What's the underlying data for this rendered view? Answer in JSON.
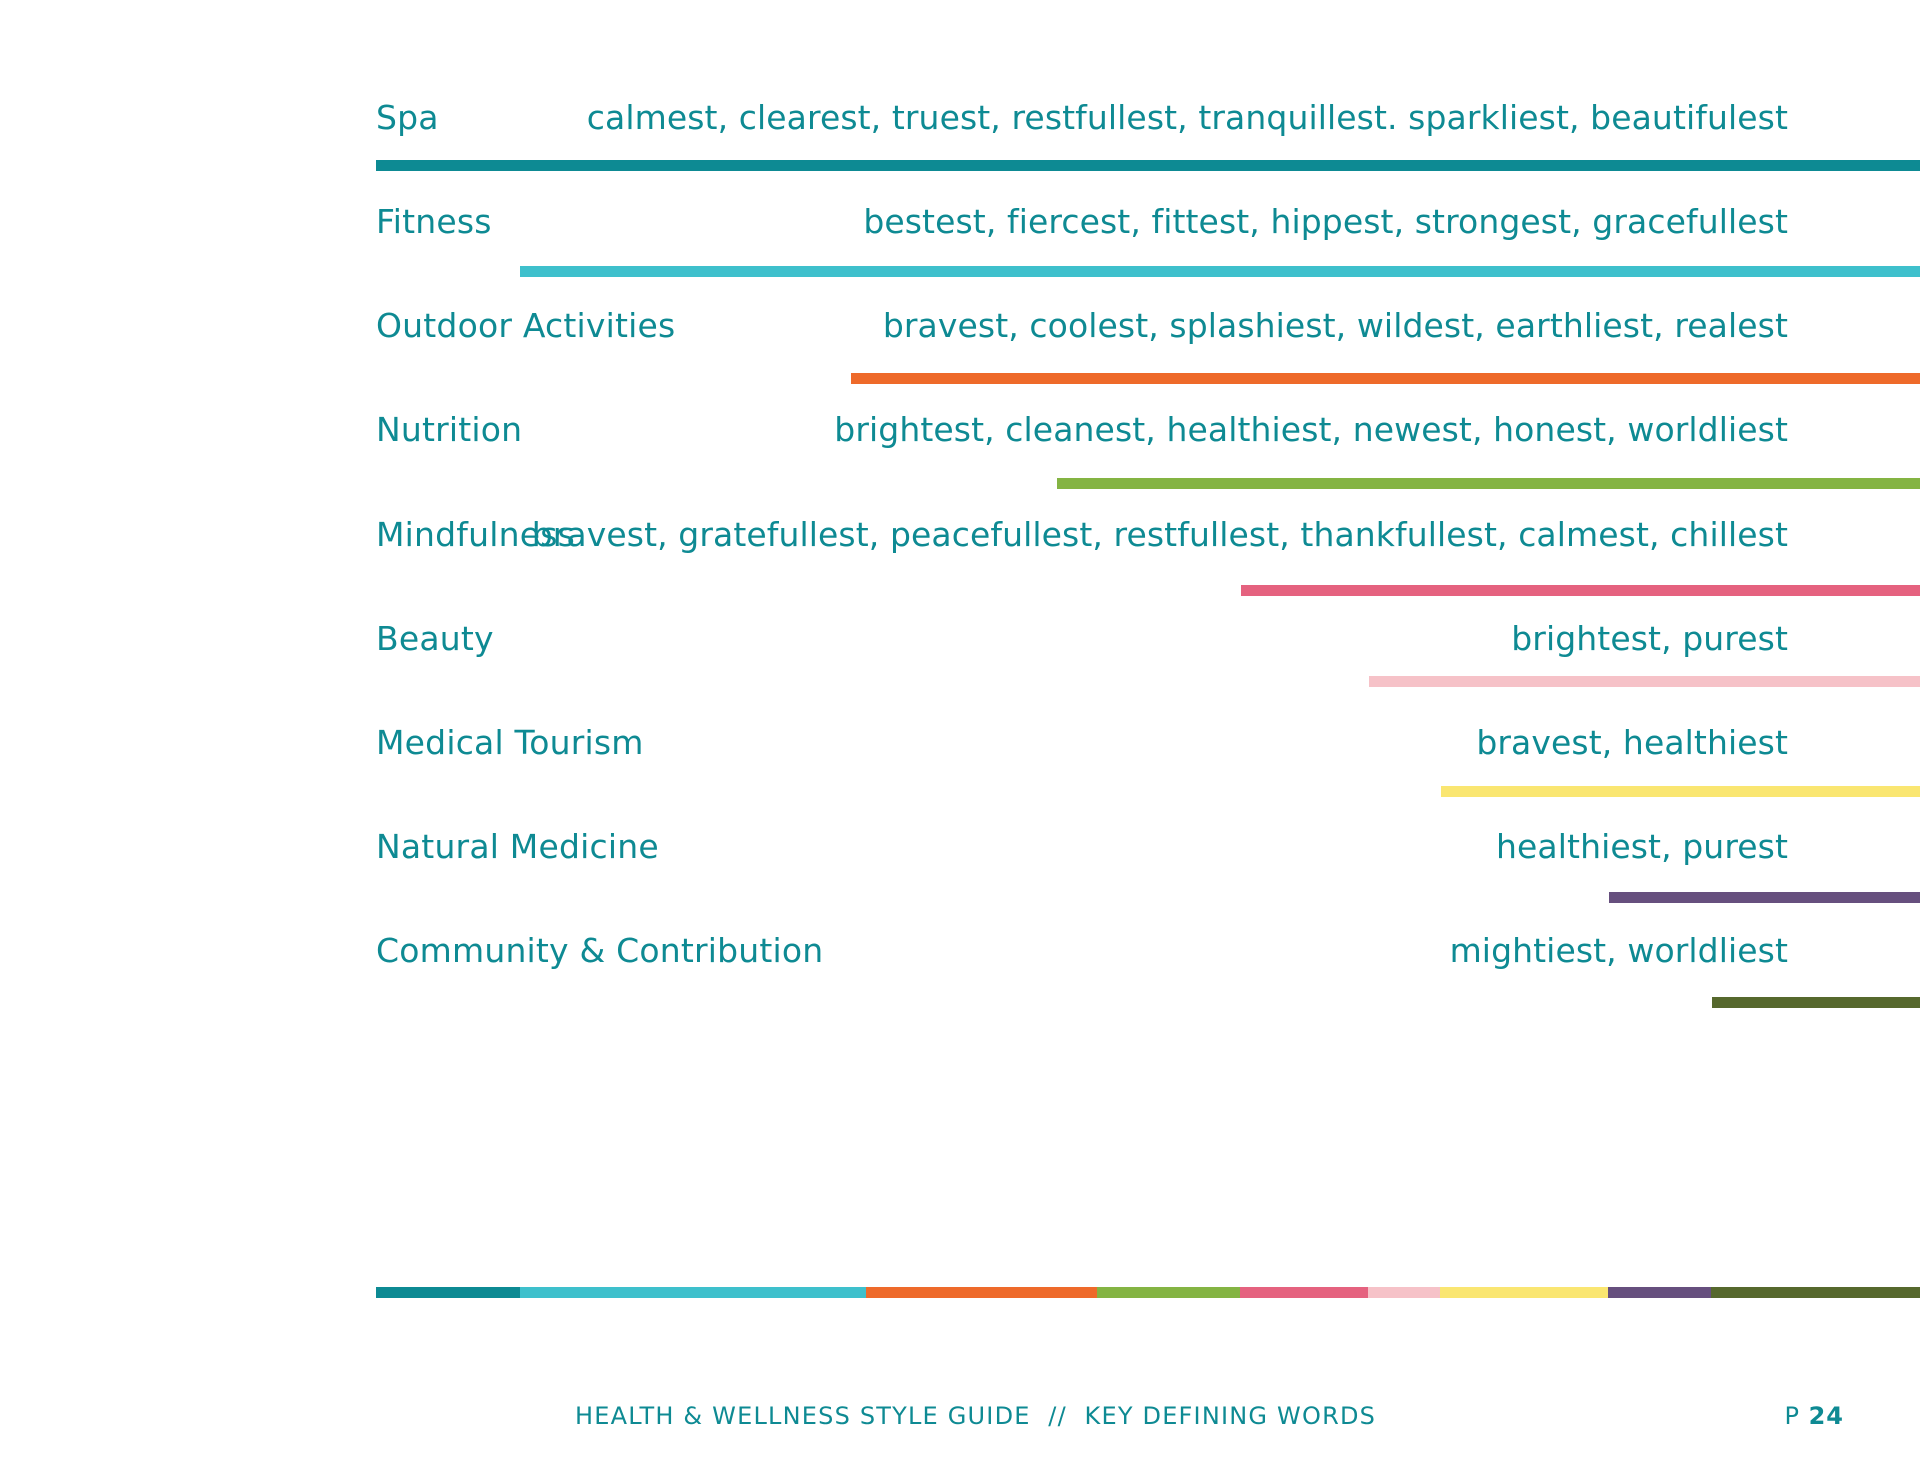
{
  "rows": [
    {
      "category": "Spa",
      "words": "calmest, clearest, truest, restfullest, tranquillest. sparkliest, beautifulest",
      "color": "#0d8a93"
    },
    {
      "category": "Fitness",
      "words": "bestest, fiercest, fittest, hippest, strongest, gracefullest",
      "color": "#3ec0cc"
    },
    {
      "category": "Outdoor Activities",
      "words": "bravest, coolest, splashiest, wildest, earthliest, realest",
      "color": "#ee6a2a"
    },
    {
      "category": "Nutrition",
      "words": "brightest, cleanest, healthiest, newest, honest, worldliest",
      "color": "#84b443"
    },
    {
      "category": "Mindfulness",
      "words": "bravest, gratefullest, peacefullest, restfullest, thankfullest, calmest, chillest",
      "color": "#e5627f"
    },
    {
      "category": "Beauty",
      "words": "brightest, purest",
      "color": "#f6c2c8"
    },
    {
      "category": "Medical Tourism",
      "words": "bravest, healthiest",
      "color": "#fae671"
    },
    {
      "category": "Natural Medicine",
      "words": "healthiest, purest",
      "color": "#664f7e"
    },
    {
      "category": "Community & Contribution",
      "words": "mightiest, worldliest",
      "color": "#56682d"
    }
  ],
  "footer": {
    "title": "HEALTH & WELLNESS STYLE GUIDE  //  KEY DEFINING WORDS",
    "page_prefix": "P",
    "page_number": "24"
  }
}
